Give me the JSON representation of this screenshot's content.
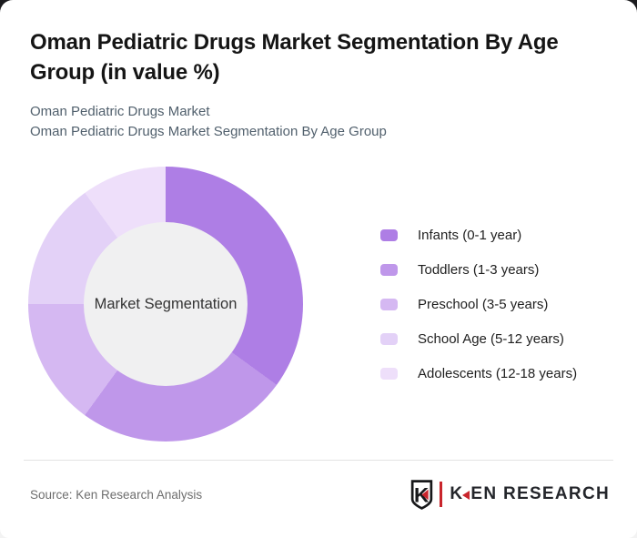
{
  "page": {
    "title": "Oman Pediatric Drugs Market Segmentation By Age Group (in value %)",
    "subtitle_line1": "Oman Pediatric Drugs Market",
    "subtitle_line2": "Oman Pediatric Drugs Market Segmentation By Age Group",
    "source": "Source: Ken Research Analysis"
  },
  "chart_data": {
    "type": "pie",
    "variant": "donut",
    "title": "Oman Pediatric Drugs Market Segmentation By Age Group (in value %)",
    "unit": "value %",
    "center_label": "Market Segmentation",
    "legend_position": "right",
    "start_angle_deg": 0,
    "direction": "clockwise",
    "categories": [
      "Infants (0-1 year)",
      "Toddlers (1-3 years)",
      "Preschool (3-5 years)",
      "School Age (5-12 years)",
      "Adolescents (12-18 years)"
    ],
    "values": [
      35,
      25,
      15,
      15,
      10
    ],
    "colors": [
      "#ae7ee5",
      "#bf97ea",
      "#d5b8f2",
      "#e3d1f7",
      "#eedffa"
    ],
    "center_circle_color": "#f0f0f1"
  },
  "logo": {
    "brand_k": "K",
    "brand_rest": "EN RESEARCH",
    "accent_color": "#c9252c"
  }
}
